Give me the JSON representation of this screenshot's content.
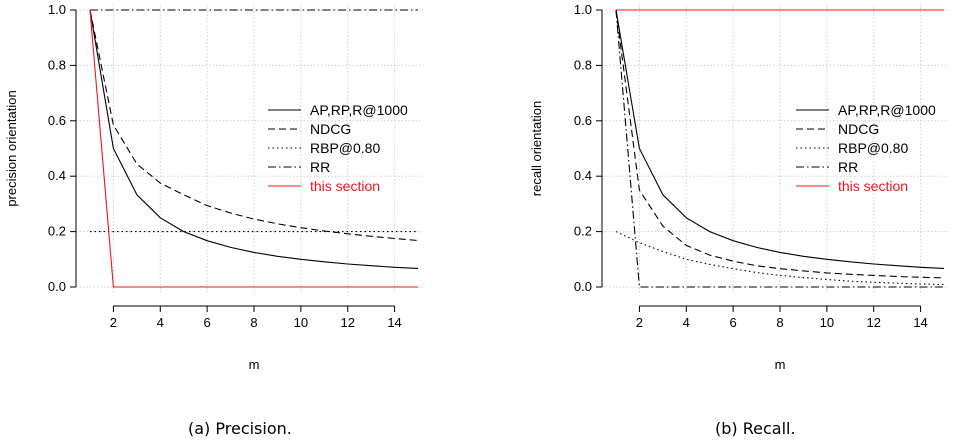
{
  "chart_data": [
    {
      "type": "line",
      "caption": "(a) Precision.",
      "xlabel": "m",
      "ylabel": "precision orientation",
      "xlim": [
        1,
        15
      ],
      "ylim": [
        0,
        1
      ],
      "xticks": [
        2,
        4,
        6,
        8,
        10,
        12,
        14
      ],
      "yticks": [
        "0.0",
        "0.2",
        "0.4",
        "0.6",
        "0.8",
        "1.0"
      ],
      "grid": true,
      "legend": "center-right",
      "x": [
        1,
        2,
        3,
        4,
        5,
        6,
        7,
        8,
        9,
        10,
        11,
        12,
        13,
        14,
        15
      ],
      "series": [
        {
          "name": "AP,RP,R@1000",
          "style": "solid",
          "color": "#000000",
          "values": [
            1.0,
            0.5,
            0.333,
            0.25,
            0.2,
            0.167,
            0.143,
            0.125,
            0.111,
            0.1,
            0.091,
            0.083,
            0.077,
            0.071,
            0.067
          ]
        },
        {
          "name": "NDCG",
          "style": "dashed",
          "color": "#000000",
          "values": [
            1.0,
            0.585,
            0.444,
            0.375,
            0.333,
            0.294,
            0.267,
            0.245,
            0.228,
            0.214,
            0.202,
            0.192,
            0.183,
            0.175,
            0.168
          ]
        },
        {
          "name": "RBP@0.80",
          "style": "dotted",
          "color": "#000000",
          "values": [
            0.2,
            0.2,
            0.2,
            0.2,
            0.2,
            0.2,
            0.2,
            0.2,
            0.2,
            0.2,
            0.2,
            0.2,
            0.2,
            0.2,
            0.2
          ]
        },
        {
          "name": "RR",
          "style": "dashdot",
          "color": "#000000",
          "values": [
            1,
            1,
            1,
            1,
            1,
            1,
            1,
            1,
            1,
            1,
            1,
            1,
            1,
            1,
            1
          ]
        },
        {
          "name": "this section",
          "style": "solid",
          "color": "#e8181c",
          "values": [
            1,
            0,
            0,
            0,
            0,
            0,
            0,
            0,
            0,
            0,
            0,
            0,
            0,
            0,
            0
          ]
        }
      ]
    },
    {
      "type": "line",
      "caption": "(b) Recall.",
      "xlabel": "m",
      "ylabel": "recall orientation",
      "xlim": [
        1,
        15
      ],
      "ylim": [
        0,
        1
      ],
      "xticks": [
        2,
        4,
        6,
        8,
        10,
        12,
        14
      ],
      "yticks": [
        "0.0",
        "0.2",
        "0.4",
        "0.6",
        "0.8",
        "1.0"
      ],
      "grid": true,
      "legend": "center-right",
      "x": [
        1,
        2,
        3,
        4,
        5,
        6,
        7,
        8,
        9,
        10,
        11,
        12,
        13,
        14,
        15
      ],
      "series": [
        {
          "name": "AP,RP,R@1000",
          "style": "solid",
          "color": "#000000",
          "values": [
            1.0,
            0.5,
            0.333,
            0.25,
            0.2,
            0.167,
            0.143,
            0.125,
            0.111,
            0.1,
            0.091,
            0.083,
            0.077,
            0.071,
            0.067
          ]
        },
        {
          "name": "NDCG",
          "style": "dashed",
          "color": "#000000",
          "values": [
            1.0,
            0.35,
            0.22,
            0.15,
            0.115,
            0.093,
            0.077,
            0.066,
            0.058,
            0.051,
            0.046,
            0.042,
            0.038,
            0.035,
            0.033
          ]
        },
        {
          "name": "RBP@0.80",
          "style": "dotted",
          "color": "#000000",
          "values": [
            0.2,
            0.16,
            0.128,
            0.1,
            0.082,
            0.066,
            0.052,
            0.042,
            0.034,
            0.027,
            0.021,
            0.017,
            0.014,
            0.011,
            0.009
          ]
        },
        {
          "name": "RR",
          "style": "dashdot",
          "color": "#000000",
          "values": [
            1,
            0,
            0,
            0,
            0,
            0,
            0,
            0,
            0,
            0,
            0,
            0,
            0,
            0,
            0
          ]
        },
        {
          "name": "this section",
          "style": "solid",
          "color": "#e8181c",
          "values": [
            1,
            1,
            1,
            1,
            1,
            1,
            1,
            1,
            1,
            1,
            1,
            1,
            1,
            1,
            1
          ]
        }
      ]
    }
  ]
}
